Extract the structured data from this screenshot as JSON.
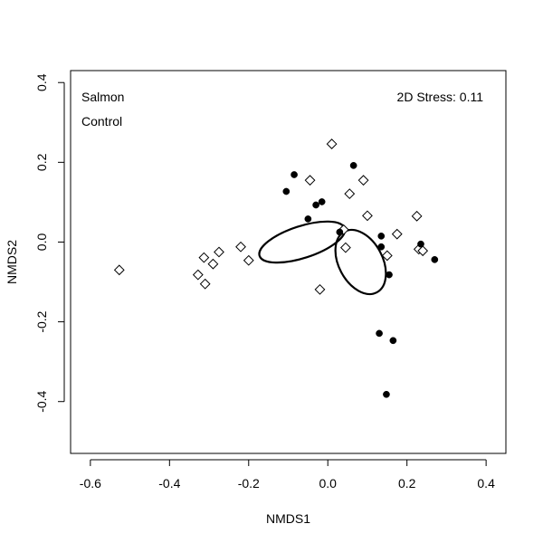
{
  "chart_data": {
    "type": "scatter",
    "title": "",
    "xlabel": "NMDS1",
    "ylabel": "NMDS2",
    "xlim": [
      -0.65,
      0.45
    ],
    "ylim": [
      -0.53,
      0.43
    ],
    "x_ticks": [
      -0.6,
      -0.4,
      -0.2,
      0.0,
      0.2,
      0.4
    ],
    "x_tick_labels": [
      "-0.6",
      "-0.4",
      "-0.2",
      "0.0",
      "0.2",
      "0.4"
    ],
    "y_ticks": [
      -0.4,
      -0.2,
      0.0,
      0.2,
      0.4
    ],
    "y_tick_labels": [
      "-0.4",
      "-0.2",
      "0.0",
      "0.2",
      "0.4"
    ],
    "grid": false,
    "legend_labels": [
      "Salmon",
      "Control"
    ],
    "legend_placement": "top-left",
    "stress_text": "2D Stress: 0.11",
    "series": [
      {
        "name": "Salmon",
        "marker": "filled-circle",
        "color": "#000000",
        "points": [
          [
            -0.085,
            0.169
          ],
          [
            -0.105,
            0.127
          ],
          [
            0.065,
            0.192
          ],
          [
            -0.015,
            0.101
          ],
          [
            -0.03,
            0.093
          ],
          [
            -0.05,
            0.058
          ],
          [
            0.03,
            0.025
          ],
          [
            0.135,
            0.015
          ],
          [
            0.135,
            -0.012
          ],
          [
            0.235,
            -0.005
          ],
          [
            0.27,
            -0.044
          ],
          [
            0.155,
            -0.082
          ],
          [
            0.13,
            -0.229
          ],
          [
            0.165,
            -0.247
          ],
          [
            0.148,
            -0.382
          ]
        ]
      },
      {
        "name": "Control",
        "marker": "open-diamond",
        "color": "#000000",
        "points": [
          [
            -0.527,
            -0.07
          ],
          [
            -0.328,
            -0.082
          ],
          [
            -0.313,
            -0.039
          ],
          [
            -0.31,
            -0.105
          ],
          [
            -0.29,
            -0.055
          ],
          [
            -0.275,
            -0.025
          ],
          [
            -0.22,
            -0.012
          ],
          [
            -0.2,
            -0.046
          ],
          [
            -0.045,
            0.155
          ],
          [
            0.01,
            0.246
          ],
          [
            0.055,
            0.121
          ],
          [
            0.09,
            0.155
          ],
          [
            0.1,
            0.066
          ],
          [
            0.04,
            0.031
          ],
          [
            0.045,
            -0.014
          ],
          [
            0.15,
            -0.034
          ],
          [
            0.175,
            0.02
          ],
          [
            0.225,
            0.065
          ],
          [
            0.23,
            -0.018
          ],
          [
            0.24,
            -0.022
          ],
          [
            -0.02,
            -0.119
          ]
        ]
      }
    ],
    "ellipses": [
      {
        "cx": -0.065,
        "cy": 0.0,
        "rx": 0.113,
        "ry": 0.04,
        "angle_deg": 18
      },
      {
        "cx": 0.083,
        "cy": -0.05,
        "rx": 0.087,
        "ry": 0.055,
        "angle_deg": -62
      }
    ]
  }
}
